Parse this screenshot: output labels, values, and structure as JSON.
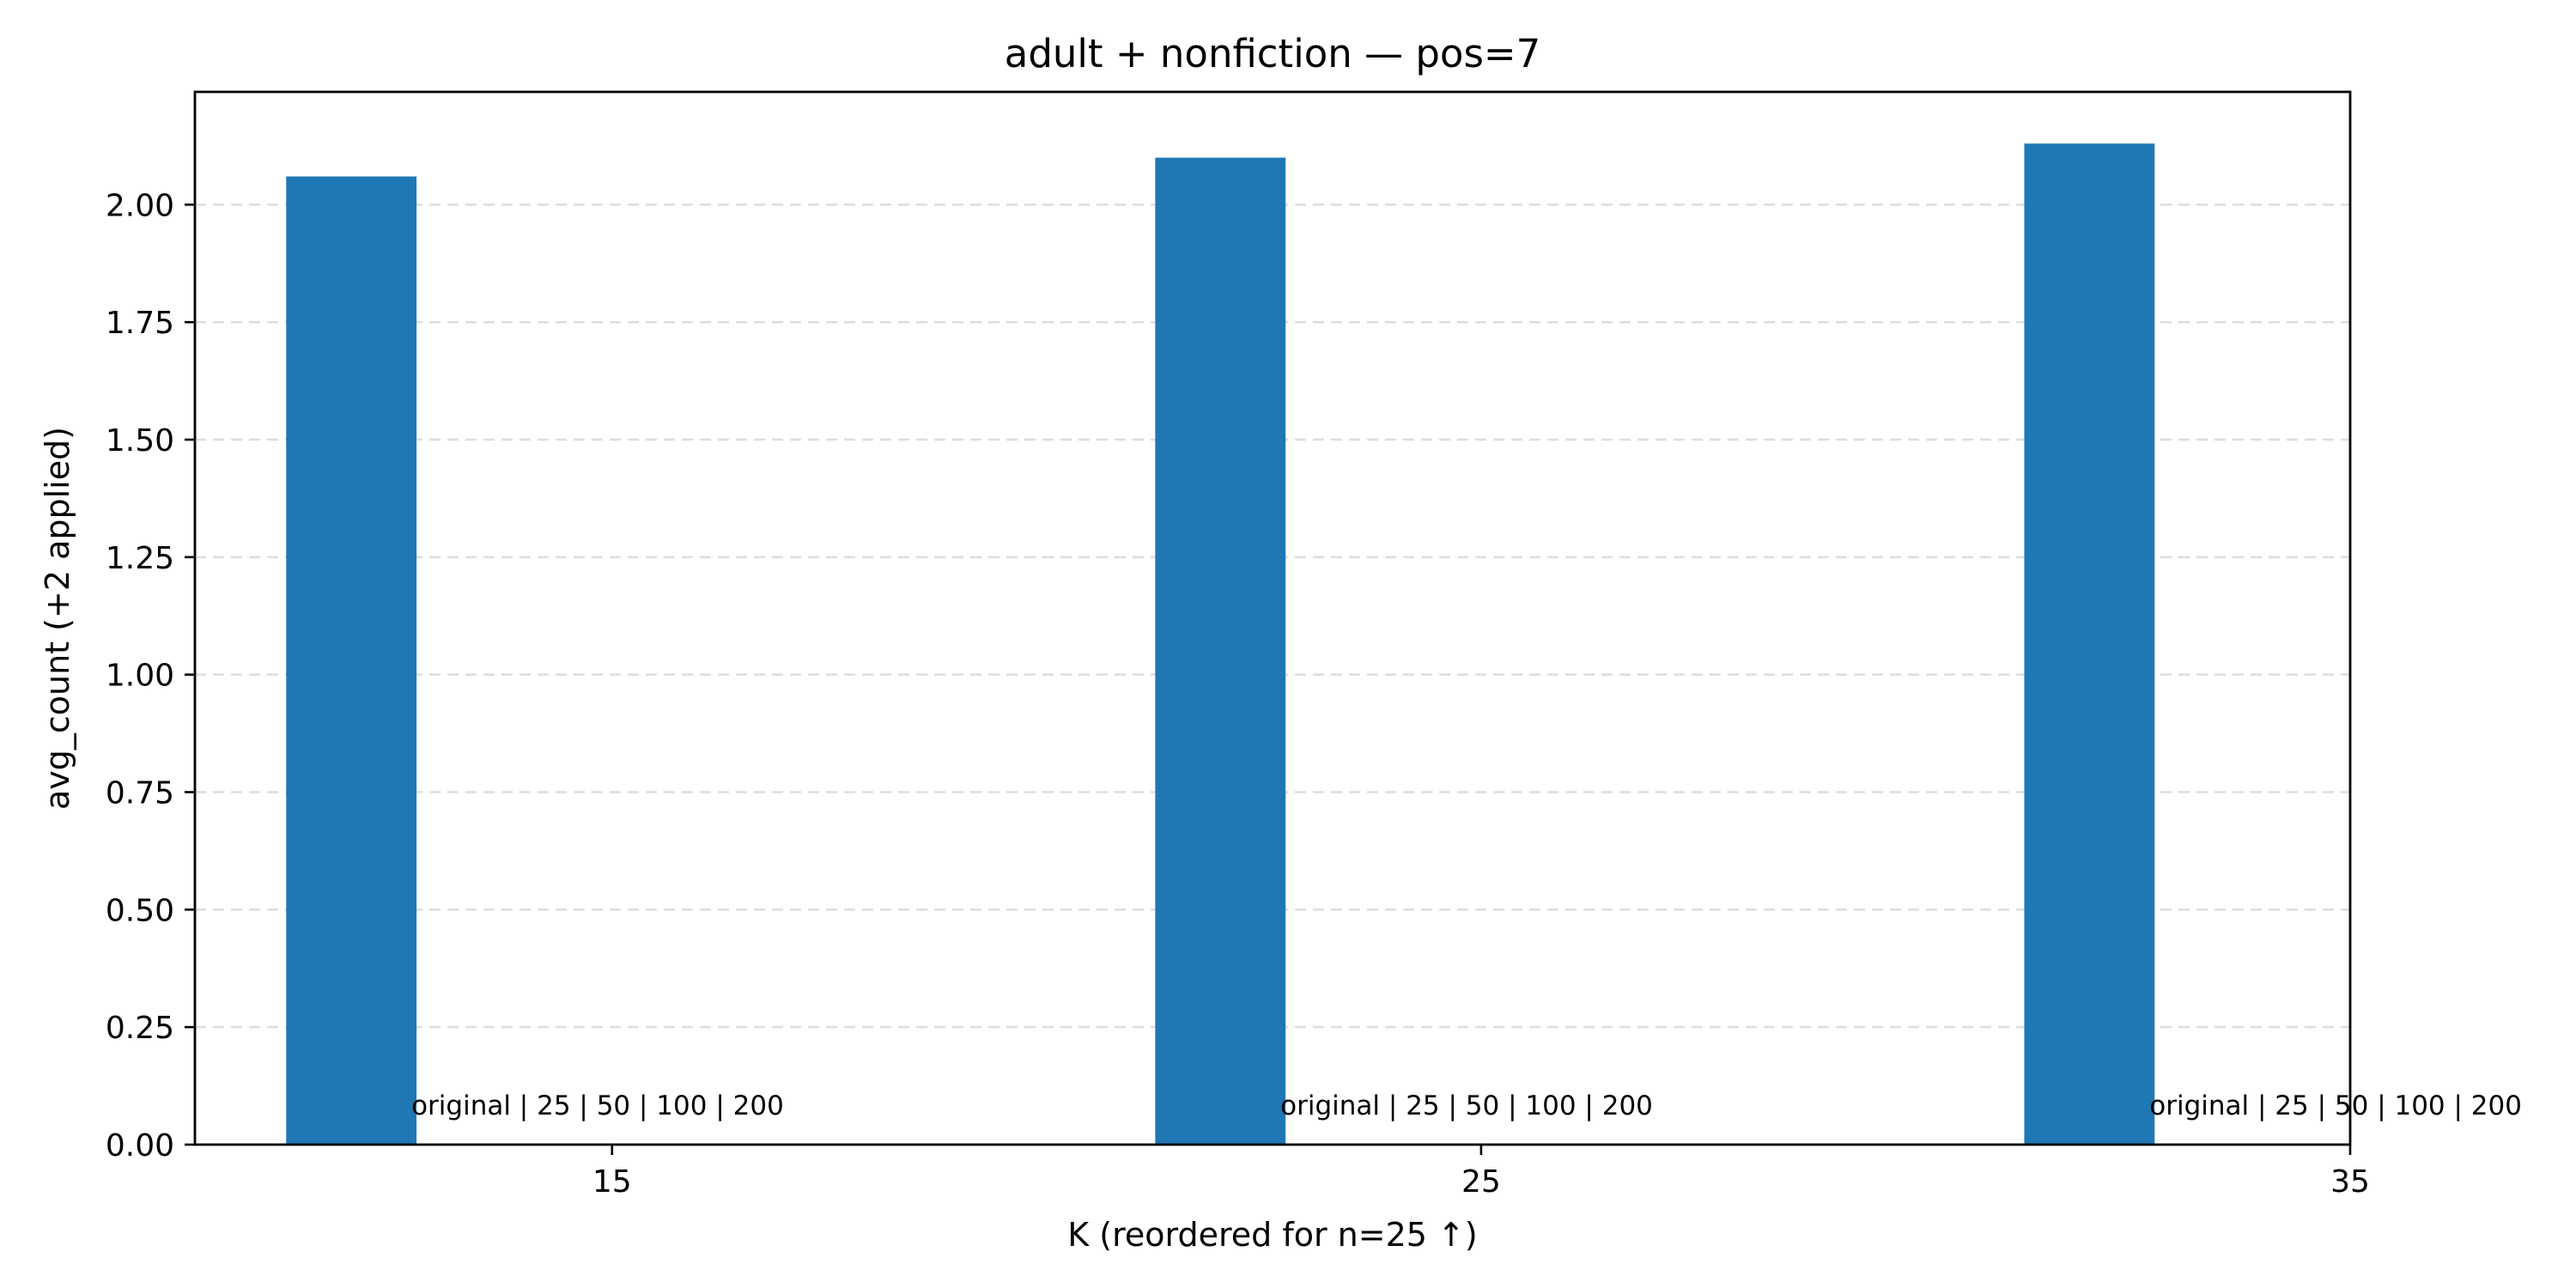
{
  "chart_data": {
    "type": "bar",
    "title": "adult + nonfiction — pos=7",
    "xlabel": "K (reordered for n=25 ↑)",
    "ylabel": "avg_count (+2 applied)",
    "x_ticks": [
      15,
      25,
      35
    ],
    "xlim": [
      10.2,
      35
    ],
    "ylim": [
      0,
      2.24
    ],
    "y_ticks": [
      "0.00",
      "0.25",
      "0.50",
      "0.75",
      "1.00",
      "1.25",
      "1.50",
      "1.75",
      "2.00"
    ],
    "bar_width": 1.5,
    "grid": "horizontal dashed",
    "bar_color": "#1f77b4",
    "bars": [
      {
        "x": 12.0,
        "value": 2.06,
        "annotation": "original | 25 | 50 | 100 | 200"
      },
      {
        "x": 22.0,
        "value": 2.1,
        "annotation": "original | 25 | 50 | 100 | 200"
      },
      {
        "x": 32.0,
        "value": 2.13,
        "annotation": "original | 25 | 50 | 100 | 200"
      }
    ]
  }
}
